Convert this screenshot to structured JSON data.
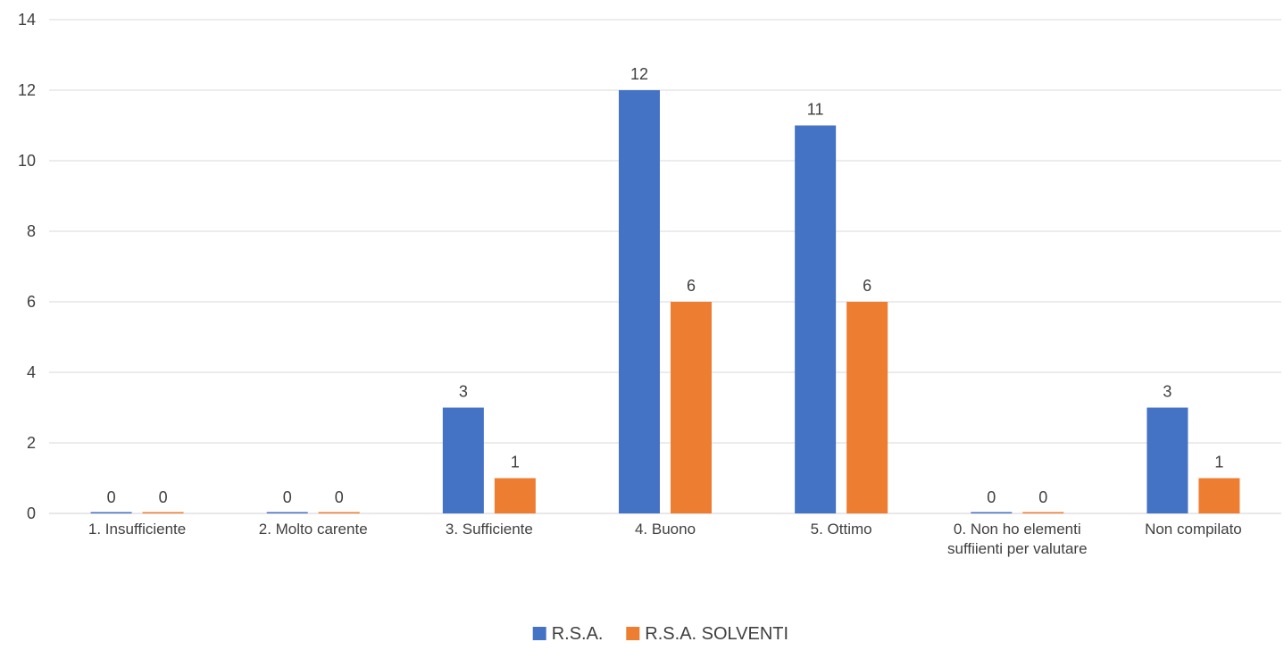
{
  "chart_data": {
    "type": "bar",
    "title": "",
    "xlabel": "",
    "ylabel": "",
    "categories": [
      "1. Insufficiente",
      "2. Molto carente",
      "3. Sufficiente",
      "4. Buono",
      "5. Ottimo",
      "0. Non ho elementi suffiienti per valutare",
      "Non compilato"
    ],
    "series": [
      {
        "name": "R.S.A.",
        "color": "#4472C4",
        "values": [
          0,
          0,
          3,
          12,
          11,
          0,
          3
        ]
      },
      {
        "name": "R.S.A. SOLVENTI",
        "color": "#ED7D31",
        "values": [
          0,
          0,
          1,
          6,
          6,
          0,
          1
        ]
      }
    ],
    "ylim": [
      0,
      14
    ],
    "yticks": [
      0,
      2,
      4,
      6,
      8,
      10,
      12,
      14
    ],
    "grid": true,
    "data_labels": true,
    "legend_position": "bottom"
  }
}
